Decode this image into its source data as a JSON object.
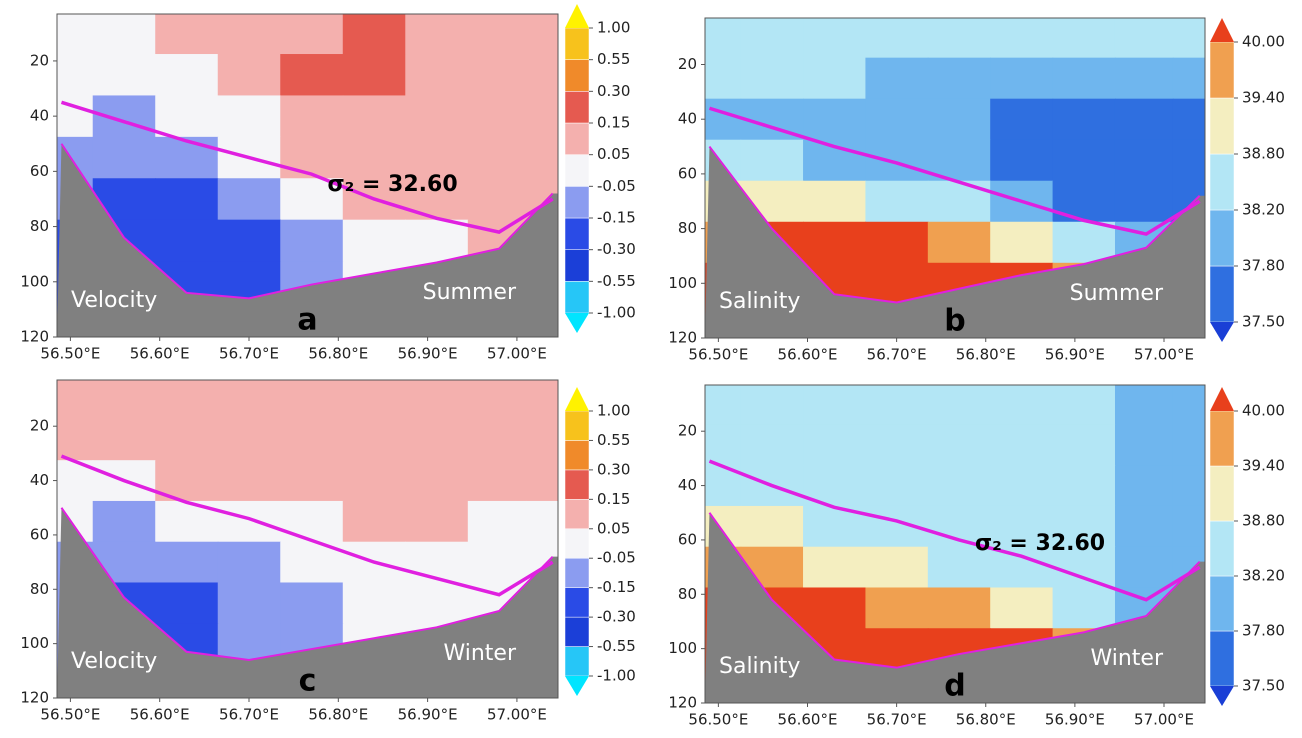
{
  "chart_data": [
    {
      "type": "contour",
      "panel": "a",
      "field": "Velocity",
      "season": "Summer",
      "xlim": [
        56.485,
        57.046
      ],
      "xticks": [
        {
          "value": 56.5,
          "label": "56.50°E"
        },
        {
          "value": 56.6,
          "label": "56.60°E"
        },
        {
          "value": 56.7,
          "label": "56.70°E"
        },
        {
          "value": 56.8,
          "label": "56.80°E"
        },
        {
          "value": 56.9,
          "label": "56.90°E"
        },
        {
          "value": 57.0,
          "label": "57.00°E"
        }
      ],
      "ylim": [
        3,
        120
      ],
      "yticks": [
        20,
        40,
        60,
        80,
        100,
        120
      ],
      "y_inverted": true,
      "lon": [
        56.49,
        56.56,
        56.63,
        56.7,
        56.77,
        56.84,
        56.91,
        56.98,
        57.04
      ],
      "depth": [
        10,
        25,
        40,
        55,
        70,
        85,
        100
      ],
      "values": [
        [
          0.02,
          0.03,
          0.05,
          0.08,
          0.12,
          0.15,
          0.13,
          0.1,
          0.08
        ],
        [
          -0.02,
          0.0,
          0.03,
          0.08,
          0.15,
          0.16,
          0.14,
          0.11,
          0.08
        ],
        [
          -0.05,
          -0.06,
          -0.04,
          0.03,
          0.12,
          0.13,
          0.12,
          0.1,
          0.08
        ],
        [
          -0.1,
          -0.15,
          -0.12,
          -0.05,
          0.08,
          0.1,
          0.1,
          0.09,
          0.08
        ],
        [
          -0.15,
          -0.2,
          -0.2,
          -0.12,
          0.02,
          0.07,
          0.08,
          0.08,
          0.07
        ],
        [
          -0.2,
          -0.22,
          -0.22,
          -0.18,
          -0.1,
          -0.03,
          0.03,
          0.05,
          0.05
        ],
        [
          -0.2,
          -0.22,
          -0.22,
          -0.2,
          -0.15,
          -0.05,
          0,
          0.02,
          0.03
        ]
      ],
      "bottom": [
        50,
        84,
        104,
        106,
        101,
        97,
        93,
        88,
        68
      ],
      "seafloor_color": "#808080",
      "isopycnal": {
        "color": "#e020e0",
        "depth": [
          35,
          42,
          49,
          55,
          61,
          70,
          77,
          82,
          70
        ],
        "label": "σ₂ = 32.60"
      },
      "colorbar": {
        "levels": [
          {
            "value": -1,
            "label": "-1.00"
          },
          {
            "value": -0.55,
            "label": "-0.55"
          },
          {
            "value": -0.3,
            "label": "-0.30"
          },
          {
            "value": -0.15,
            "label": "-0.15"
          },
          {
            "value": -0.05,
            "label": "-0.05"
          },
          {
            "value": 0.05,
            "label": "0.05"
          },
          {
            "value": 0.15,
            "label": "0.15"
          },
          {
            "value": 0.3,
            "label": "0.30"
          },
          {
            "value": 0.55,
            "label": "0.55"
          },
          {
            "value": 1,
            "label": "1.00"
          }
        ],
        "colors": [
          "#00e5ff",
          "#26c6f7",
          "#1b3fd8",
          "#2a4be6",
          "#8b9cf0",
          "#f5f5f8",
          "#f4b0ae",
          "#e55a50",
          "#f08a2a",
          "#f7c21c",
          "#fff200"
        ]
      }
    },
    {
      "type": "contour",
      "panel": "b",
      "field": "Salinity",
      "season": "Summer",
      "xlim": [
        56.485,
        57.046
      ],
      "xticks": [
        {
          "value": 56.5,
          "label": "56.50°E"
        },
        {
          "value": 56.6,
          "label": "56.60°E"
        },
        {
          "value": 56.7,
          "label": "56.70°E"
        },
        {
          "value": 56.8,
          "label": "56.80°E"
        },
        {
          "value": 56.9,
          "label": "56.90°E"
        },
        {
          "value": 57.0,
          "label": "57.00°E"
        }
      ],
      "ylim": [
        3,
        120
      ],
      "yticks": [
        20,
        40,
        60,
        80,
        100,
        120
      ],
      "y_inverted": true,
      "lon": [
        56.49,
        56.56,
        56.63,
        56.7,
        56.77,
        56.84,
        56.91,
        56.98,
        57.04
      ],
      "depth": [
        10,
        25,
        40,
        55,
        70,
        85,
        100
      ],
      "values": [
        [
          38.7,
          38.7,
          38.7,
          38.7,
          38.7,
          38.6,
          38.6,
          38.6,
          38.6
        ],
        [
          38.3,
          38.2,
          38.2,
          38.1,
          38.1,
          38.1,
          38.0,
          38.0,
          38.0
        ],
        [
          38.1,
          37.9,
          37.9,
          37.8,
          37.8,
          37.7,
          37.7,
          37.7,
          37.7
        ],
        [
          38.6,
          38.2,
          38.0,
          37.8,
          37.8,
          37.7,
          37.6,
          37.6,
          37.6
        ],
        [
          39.3,
          39.2,
          39.0,
          38.6,
          38.2,
          37.9,
          37.7,
          37.7,
          37.7
        ],
        [
          39.9,
          40.1,
          40.1,
          40.1,
          39.8,
          39.0,
          38.2,
          38.0,
          38.0
        ],
        [
          40.1,
          40.2,
          40.2,
          40.2,
          40.2,
          40.1,
          39.5,
          38.5,
          38.2
        ]
      ],
      "bottom": [
        50,
        80,
        104,
        107,
        102,
        97,
        93,
        87,
        68
      ],
      "seafloor_color": "#808080",
      "isopycnal": {
        "color": "#e020e0",
        "depth": [
          36,
          43,
          50,
          56,
          63,
          70,
          77,
          82,
          70
        ]
      },
      "colorbar": {
        "levels": [
          {
            "value": 37.5,
            "label": "37.50"
          },
          {
            "value": 37.8,
            "label": "37.80"
          },
          {
            "value": 38.2,
            "label": "38.20"
          },
          {
            "value": 38.8,
            "label": "38.80"
          },
          {
            "value": 39.4,
            "label": "39.40"
          },
          {
            "value": 40,
            "label": "40.00"
          }
        ],
        "colors": [
          "#1a3fd6",
          "#2f6fe0",
          "#6fb6ee",
          "#b3e6f5",
          "#f4eec0",
          "#f0a050",
          "#e8401c"
        ]
      }
    },
    {
      "type": "contour",
      "panel": "c",
      "field": "Velocity",
      "season": "Winter",
      "xlim": [
        56.485,
        57.046
      ],
      "xticks": [
        {
          "value": 56.5,
          "label": "56.50°E"
        },
        {
          "value": 56.6,
          "label": "56.60°E"
        },
        {
          "value": 56.7,
          "label": "56.70°E"
        },
        {
          "value": 56.8,
          "label": "56.80°E"
        },
        {
          "value": 56.9,
          "label": "56.90°E"
        },
        {
          "value": 57.0,
          "label": "57.00°E"
        }
      ],
      "ylim": [
        3,
        120
      ],
      "yticks": [
        20,
        40,
        60,
        80,
        100,
        120
      ],
      "y_inverted": true,
      "lon": [
        56.49,
        56.56,
        56.63,
        56.7,
        56.77,
        56.84,
        56.91,
        56.98,
        57.04
      ],
      "depth": [
        10,
        25,
        40,
        55,
        70,
        85,
        100
      ],
      "values": [
        [
          0.06,
          0.07,
          0.06,
          0.07,
          0.07,
          0.07,
          0.07,
          0.07,
          0.07
        ],
        [
          0.05,
          0.06,
          0.06,
          0.06,
          0.06,
          0.06,
          0.06,
          0.06,
          0.06
        ],
        [
          0.0,
          0.03,
          0.05,
          0.05,
          0.05,
          0.06,
          0.06,
          0.05,
          0.05
        ],
        [
          -0.05,
          -0.06,
          -0.02,
          0.02,
          0.04,
          0.05,
          0.05,
          0.04,
          0.03
        ],
        [
          -0.1,
          -0.12,
          -0.1,
          -0.06,
          0.0,
          0.03,
          0.04,
          0.03,
          0.02
        ],
        [
          -0.15,
          -0.2,
          -0.18,
          -0.12,
          -0.06,
          -0.02,
          0.01,
          0.02,
          0.02
        ],
        [
          -0.15,
          -0.2,
          -0.2,
          -0.15,
          -0.08,
          -0.03,
          0,
          0.01,
          0.01
        ]
      ],
      "bottom": [
        50,
        83,
        103,
        106,
        102,
        98,
        94,
        88,
        68
      ],
      "seafloor_color": "#808080",
      "isopycnal": {
        "color": "#e020e0",
        "depth": [
          31,
          40,
          48,
          54,
          62,
          70,
          76,
          82,
          70
        ]
      },
      "colorbar": {
        "levels": [
          {
            "value": -1,
            "label": "-1.00"
          },
          {
            "value": -0.55,
            "label": "-0.55"
          },
          {
            "value": -0.3,
            "label": "-0.30"
          },
          {
            "value": -0.15,
            "label": "-0.15"
          },
          {
            "value": -0.05,
            "label": "-0.05"
          },
          {
            "value": 0.05,
            "label": "0.05"
          },
          {
            "value": 0.15,
            "label": "0.15"
          },
          {
            "value": 0.3,
            "label": "0.30"
          },
          {
            "value": 0.55,
            "label": "0.55"
          },
          {
            "value": 1,
            "label": "1.00"
          }
        ],
        "colors": [
          "#00e5ff",
          "#26c6f7",
          "#1b3fd8",
          "#2a4be6",
          "#8b9cf0",
          "#f5f5f8",
          "#f4b0ae",
          "#e55a50",
          "#f08a2a",
          "#f7c21c",
          "#fff200"
        ]
      }
    },
    {
      "type": "contour",
      "panel": "d",
      "field": "Salinity",
      "season": "Winter",
      "xlim": [
        56.485,
        57.046
      ],
      "xticks": [
        {
          "value": 56.5,
          "label": "56.50°E"
        },
        {
          "value": 56.6,
          "label": "56.60°E"
        },
        {
          "value": 56.7,
          "label": "56.70°E"
        },
        {
          "value": 56.8,
          "label": "56.80°E"
        },
        {
          "value": 56.9,
          "label": "56.90°E"
        },
        {
          "value": 57.0,
          "label": "57.00°E"
        }
      ],
      "ylim": [
        3,
        120
      ],
      "yticks": [
        20,
        40,
        60,
        80,
        100,
        120
      ],
      "y_inverted": true,
      "lon": [
        56.49,
        56.56,
        56.63,
        56.7,
        56.77,
        56.84,
        56.91,
        56.98,
        57.04
      ],
      "depth": [
        10,
        25,
        40,
        55,
        70,
        85,
        100
      ],
      "values": [
        [
          38.3,
          38.3,
          38.3,
          38.3,
          38.3,
          38.3,
          38.3,
          38.1,
          38.0
        ],
        [
          38.3,
          38.3,
          38.3,
          38.3,
          38.3,
          38.3,
          38.3,
          38.1,
          38.0
        ],
        [
          38.4,
          38.3,
          38.3,
          38.3,
          38.3,
          38.3,
          38.3,
          38.1,
          38.0
        ],
        [
          39.2,
          38.9,
          38.6,
          38.4,
          38.3,
          38.3,
          38.3,
          38.1,
          38.0
        ],
        [
          39.7,
          39.6,
          39.3,
          39.0,
          38.6,
          38.3,
          38.3,
          38.1,
          38.0
        ],
        [
          40.1,
          40.1,
          40.1,
          39.9,
          39.6,
          39.1,
          38.5,
          38.1,
          38.0
        ],
        [
          40.1,
          40.2,
          40.2,
          40.2,
          40.2,
          40.0,
          39.5,
          38.6,
          38.2
        ]
      ],
      "bottom": [
        50,
        82,
        104,
        107,
        102,
        98,
        94,
        88,
        68
      ],
      "seafloor_color": "#808080",
      "isopycnal": {
        "color": "#e020e0",
        "depth": [
          31,
          40,
          48,
          53,
          60,
          66,
          74,
          82,
          70
        ],
        "label": "σ₂ = 32.60"
      },
      "colorbar": {
        "levels": [
          {
            "value": 37.5,
            "label": "37.50"
          },
          {
            "value": 37.8,
            "label": "37.80"
          },
          {
            "value": 38.2,
            "label": "38.20"
          },
          {
            "value": 38.8,
            "label": "38.80"
          },
          {
            "value": 39.4,
            "label": "39.40"
          },
          {
            "value": 40,
            "label": "40.00"
          }
        ],
        "colors": [
          "#1a3fd6",
          "#2f6fe0",
          "#6fb6ee",
          "#b3e6f5",
          "#f4eec0",
          "#f0a050",
          "#e8401c"
        ]
      }
    }
  ]
}
